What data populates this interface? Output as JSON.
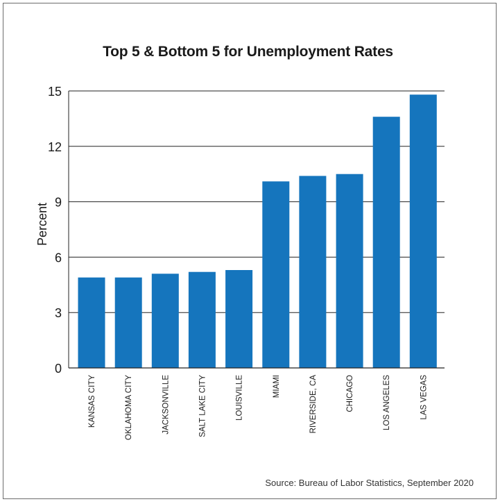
{
  "chart_data": {
    "type": "bar",
    "title": "Top 5 & Bottom 5 for Unemployment Rates",
    "ylabel": "Percent",
    "xlabel": "",
    "categories": [
      "KANSAS CITY",
      "OKLAHOMA CITY",
      "JACKSONVILLE",
      "SALT LAKE CITY",
      "LOUISVILLE",
      "MIAMI",
      "RIVERSIDE, CA",
      "CHICAGO",
      "LOS ANGELES",
      "LAS VEGAS"
    ],
    "values": [
      4.9,
      4.9,
      5.1,
      5.2,
      5.3,
      10.1,
      10.4,
      10.5,
      13.6,
      14.8
    ],
    "ylim": [
      0,
      15
    ],
    "yticks": [
      "0",
      "3",
      "6",
      "9",
      "12",
      "15"
    ],
    "grid": true,
    "bar_color": "#1575bd",
    "source": "Source: Bureau of Labor Statistics, September 2020"
  }
}
